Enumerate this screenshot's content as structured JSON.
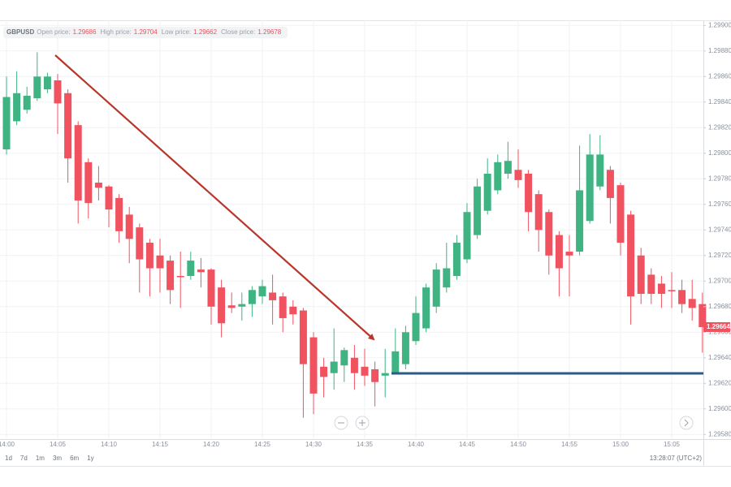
{
  "header": {
    "symbol": "GBPUSD",
    "fields": [
      {
        "label": "Open price:",
        "value": "1.29686"
      },
      {
        "label": "High price:",
        "value": "1.29704"
      },
      {
        "label": "Low price:",
        "value": "1.29662"
      },
      {
        "label": "Close price:",
        "value": "1.29678"
      }
    ]
  },
  "range_buttons": [
    "1d",
    "7d",
    "1m",
    "3m",
    "6m",
    "1y"
  ],
  "clock": "13:28:07 (UTC+2)",
  "chart_data": {
    "type": "candlestick",
    "categories": [
      "14:00",
      null,
      null,
      null,
      null,
      "14:05",
      null,
      null,
      null,
      null,
      "14:10",
      null,
      null,
      null,
      null,
      "14:15",
      null,
      null,
      null,
      null,
      "14:20",
      null,
      null,
      null,
      null,
      "14:25",
      null,
      null,
      null,
      null,
      "14:30",
      null,
      null,
      null,
      null,
      "14:35",
      null,
      null,
      null,
      null,
      "14:40",
      null,
      null,
      null,
      null,
      "14:45",
      null,
      null,
      null,
      null,
      "14:50",
      null,
      null,
      null,
      null,
      "14:55",
      null,
      null,
      null,
      null,
      "15:00",
      null,
      null,
      null,
      null,
      "15:05",
      null,
      null,
      null
    ],
    "series": {
      "open": [
        1.29803,
        1.29825,
        1.29834,
        1.29843,
        1.2985,
        1.29857,
        1.29847,
        1.29822,
        1.29793,
        1.29777,
        1.29774,
        1.29765,
        1.29752,
        1.29742,
        1.2973,
        1.2972,
        1.29716,
        1.29704,
        1.29704,
        1.29709,
        1.29709,
        1.29695,
        1.29681,
        1.2968,
        1.29682,
        1.29688,
        1.29691,
        1.29688,
        1.2968,
        1.29677,
        1.29656,
        1.29633,
        1.29628,
        1.29634,
        1.2964,
        1.29633,
        1.29631,
        1.29626,
        1.29628,
        1.29635,
        1.29653,
        1.29663,
        1.2968,
        1.29695,
        1.29704,
        1.29717,
        1.29736,
        1.29755,
        1.29771,
        1.29784,
        1.29787,
        1.29784,
        1.29768,
        1.29754,
        1.29736,
        1.29723,
        1.29723,
        1.29747,
        1.29774,
        1.29787,
        1.29775,
        1.29752,
        1.2972,
        1.29705,
        1.29698,
        1.29693,
        1.29693,
        1.29686,
        1.29682
      ],
      "high": [
        1.2986,
        1.29864,
        1.29852,
        1.29879,
        1.29863,
        1.29862,
        1.2985,
        1.29825,
        1.29796,
        1.2979,
        1.29775,
        1.29768,
        1.29758,
        1.29745,
        1.29733,
        1.29733,
        1.2972,
        1.29723,
        1.29723,
        1.29718,
        1.2971,
        1.29701,
        1.29691,
        1.29691,
        1.29696,
        1.29701,
        1.29705,
        1.29691,
        1.29685,
        1.29679,
        1.2966,
        1.2964,
        1.29663,
        1.29648,
        1.2965,
        1.29647,
        1.29637,
        1.29647,
        1.29663,
        1.29665,
        1.29688,
        1.29698,
        1.29714,
        1.2973,
        1.29736,
        1.29761,
        1.2978,
        1.29796,
        1.29799,
        1.29809,
        1.29803,
        1.29787,
        1.29771,
        1.29756,
        1.29739,
        1.29736,
        1.29806,
        1.29815,
        1.29814,
        1.2979,
        1.29777,
        1.29755,
        1.29726,
        1.2971,
        1.29704,
        1.29707,
        1.29701,
        1.29701,
        1.29691
      ],
      "low": [
        1.29799,
        1.29822,
        1.29831,
        1.29841,
        1.29847,
        1.29815,
        1.29777,
        1.29745,
        1.29749,
        1.29763,
        1.29742,
        1.2973,
        1.29714,
        1.29691,
        1.29688,
        1.29691,
        1.29682,
        1.29679,
        1.29701,
        1.29695,
        1.29666,
        1.29656,
        1.29675,
        1.29669,
        1.29672,
        1.29682,
        1.29666,
        1.2966,
        1.29666,
        1.29593,
        1.29596,
        1.29609,
        1.29615,
        1.29621,
        1.29615,
        1.29618,
        1.29602,
        1.29609,
        1.29628,
        1.29631,
        1.2965,
        1.2966,
        1.29675,
        1.29691,
        1.29701,
        1.29714,
        1.29733,
        1.29752,
        1.29768,
        1.2978,
        1.29773,
        1.29739,
        1.29723,
        1.29705,
        1.29688,
        1.29688,
        1.2972,
        1.29745,
        1.29771,
        1.29745,
        1.2972,
        1.29666,
        1.29682,
        1.29682,
        1.29679,
        1.29679,
        1.29675,
        1.29669,
        1.29644
      ],
      "close": [
        1.29844,
        1.29847,
        1.29845,
        1.2986,
        1.2986,
        1.29839,
        1.29796,
        1.29763,
        1.29761,
        1.29773,
        1.29756,
        1.29739,
        1.29733,
        1.29717,
        1.2971,
        1.2971,
        1.29693,
        1.29703,
        1.29716,
        1.29707,
        1.2968,
        1.29667,
        1.29679,
        1.29682,
        1.29693,
        1.29696,
        1.29685,
        1.29671,
        1.29674,
        1.29635,
        1.29612,
        1.29625,
        1.29637,
        1.29646,
        1.29628,
        1.29626,
        1.29621,
        1.29628,
        1.29645,
        1.2966,
        1.29675,
        1.29695,
        1.29709,
        1.2971,
        1.2973,
        1.29754,
        1.29774,
        1.29784,
        1.29793,
        1.29794,
        1.29779,
        1.29754,
        1.2974,
        1.2972,
        1.2971,
        1.2972,
        1.29771,
        1.29799,
        1.29799,
        1.29765,
        1.2973,
        1.29688,
        1.2969,
        1.2969,
        1.2969,
        1.29692,
        1.29682,
        1.29679,
        1.29664
      ]
    },
    "up_color": "#3fb382",
    "down_color": "#f0525f",
    "ylim": [
      1.29577,
      1.29904
    ],
    "yticks": [
      {
        "value": 1.299,
        "label": "1.29900"
      },
      {
        "value": 1.2988,
        "label": "1.29880"
      },
      {
        "value": 1.2986,
        "label": "1.29860"
      },
      {
        "value": 1.2984,
        "label": "1.29840"
      },
      {
        "value": 1.2982,
        "label": "1.29820"
      },
      {
        "value": 1.298,
        "label": "1.29800"
      },
      {
        "value": 1.2978,
        "label": "1.29780"
      },
      {
        "value": 1.2976,
        "label": "1.29760"
      },
      {
        "value": 1.2974,
        "label": "1.29740"
      },
      {
        "value": 1.2972,
        "label": "1.29720"
      },
      {
        "value": 1.297,
        "label": "1.29700"
      },
      {
        "value": 1.2968,
        "label": "1.29680"
      },
      {
        "value": 1.2966,
        "label": "1.29660"
      },
      {
        "value": 1.2964,
        "label": "1.29640"
      },
      {
        "value": 1.2962,
        "label": "1.29620"
      },
      {
        "value": 1.296,
        "label": "1.29600"
      },
      {
        "value": 1.2958,
        "label": "1.29580"
      }
    ],
    "last_price": {
      "value": 1.29664,
      "label": "1.29664"
    },
    "grid": true
  }
}
